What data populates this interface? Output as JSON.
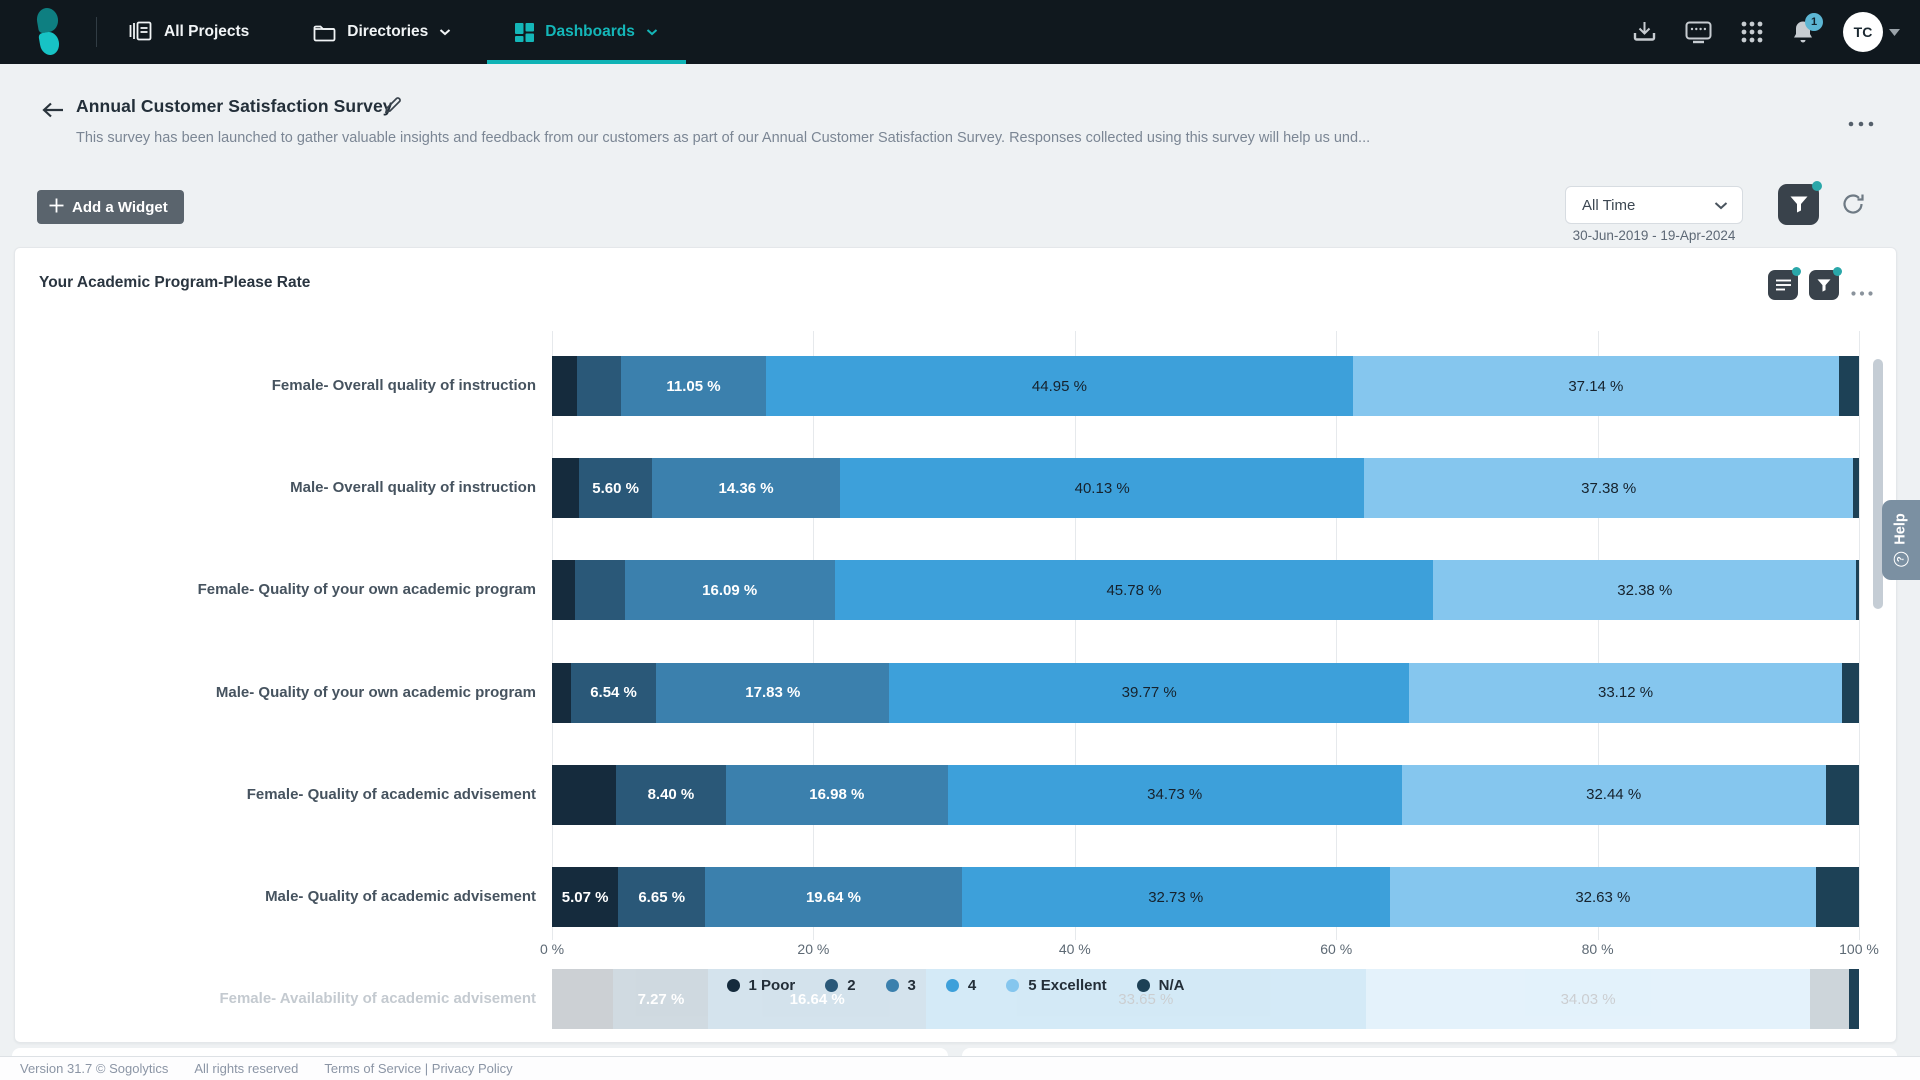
{
  "nav": {
    "items": [
      {
        "label": "All Projects"
      },
      {
        "label": "Directories"
      },
      {
        "label": "Dashboards"
      }
    ],
    "active_item": "Dashboards",
    "notification_count": "1",
    "avatar_initials": "TC"
  },
  "header": {
    "title": "Annual Customer Satisfaction Survey",
    "description": "This survey has been launched to gather valuable insights and feedback from our customers as part of our Annual Customer Satisfaction Survey. Responses collected using this survey will help us und..."
  },
  "toolbar": {
    "add_widget_label": "Add a Widget",
    "time_filter_value": "All Time",
    "date_range": "30-Jun-2019 - 19-Apr-2024"
  },
  "widget": {
    "title": "Your Academic Program-Please Rate"
  },
  "chart_data": {
    "type": "stacked_bar_horizontal",
    "title": "Your Academic Program-Please Rate",
    "x_axis": {
      "min": 0,
      "max": 100,
      "ticks": [
        "0 %",
        "20 %",
        "40 %",
        "60 %",
        "80 %",
        "100 %"
      ]
    },
    "grid": true,
    "legend_position": "bottom-center",
    "legend": [
      {
        "label": "1 Poor",
        "color": "#152b3d"
      },
      {
        "label": "2",
        "color": "#2a5878"
      },
      {
        "label": "3",
        "color": "#3b80ad"
      },
      {
        "label": "4",
        "color": "#3da0da"
      },
      {
        "label": "5 Excellent",
        "color": "#85c6ee"
      },
      {
        "label": "N/A",
        "color": "#1d4156"
      }
    ],
    "rows": [
      {
        "category": "Female- Overall quality of instruction",
        "faded": false,
        "segments": [
          {
            "series": "1 Poor",
            "value": 1.9,
            "label": ""
          },
          {
            "series": "2",
            "value": 3.4,
            "label": ""
          },
          {
            "series": "3",
            "value": 11.05,
            "label": "11.05 %"
          },
          {
            "series": "4",
            "value": 44.95,
            "label": "44.95 %"
          },
          {
            "series": "5 Excellent",
            "value": 37.14,
            "label": "37.14 %"
          },
          {
            "series": "N/A",
            "value": 1.56,
            "label": ""
          }
        ]
      },
      {
        "category": "Male- Overall quality of instruction",
        "faded": false,
        "segments": [
          {
            "series": "1 Poor",
            "value": 2.07,
            "label": ""
          },
          {
            "series": "2",
            "value": 5.6,
            "label": "5.60 %"
          },
          {
            "series": "3",
            "value": 14.36,
            "label": "14.36 %"
          },
          {
            "series": "4",
            "value": 40.13,
            "label": "40.13 %"
          },
          {
            "series": "5 Excellent",
            "value": 37.38,
            "label": "37.38 %"
          },
          {
            "series": "N/A",
            "value": 0.46,
            "label": ""
          }
        ]
      },
      {
        "category": "Female- Quality of your own academic program",
        "faded": false,
        "segments": [
          {
            "series": "1 Poor",
            "value": 1.76,
            "label": ""
          },
          {
            "series": "2",
            "value": 3.79,
            "label": ""
          },
          {
            "series": "3",
            "value": 16.09,
            "label": "16.09 %"
          },
          {
            "series": "4",
            "value": 45.78,
            "label": "45.78 %"
          },
          {
            "series": "5 Excellent",
            "value": 32.38,
            "label": "32.38 %"
          },
          {
            "series": "N/A",
            "value": 0.2,
            "label": ""
          }
        ]
      },
      {
        "category": "Male- Quality of your own academic program",
        "faded": false,
        "segments": [
          {
            "series": "1 Poor",
            "value": 1.44,
            "label": ""
          },
          {
            "series": "2",
            "value": 6.54,
            "label": "6.54 %"
          },
          {
            "series": "3",
            "value": 17.83,
            "label": "17.83 %"
          },
          {
            "series": "4",
            "value": 39.77,
            "label": "39.77 %"
          },
          {
            "series": "5 Excellent",
            "value": 33.12,
            "label": "33.12 %"
          },
          {
            "series": "N/A",
            "value": 1.3,
            "label": ""
          }
        ]
      },
      {
        "category": "Female- Quality of academic advisement",
        "faded": false,
        "segments": [
          {
            "series": "1 Poor",
            "value": 4.9,
            "label": ""
          },
          {
            "series": "2",
            "value": 8.4,
            "label": "8.40 %"
          },
          {
            "series": "3",
            "value": 16.98,
            "label": "16.98 %"
          },
          {
            "series": "4",
            "value": 34.73,
            "label": "34.73 %"
          },
          {
            "series": "5 Excellent",
            "value": 32.44,
            "label": "32.44 %"
          },
          {
            "series": "N/A",
            "value": 2.55,
            "label": ""
          }
        ]
      },
      {
        "category": "Male- Quality of academic advisement",
        "faded": false,
        "segments": [
          {
            "series": "1 Poor",
            "value": 5.07,
            "label": "5.07 %"
          },
          {
            "series": "2",
            "value": 6.65,
            "label": "6.65 %"
          },
          {
            "series": "3",
            "value": 19.64,
            "label": "19.64 %"
          },
          {
            "series": "4",
            "value": 32.73,
            "label": "32.73 %"
          },
          {
            "series": "5 Excellent",
            "value": 32.63,
            "label": "32.63 %"
          },
          {
            "series": "N/A",
            "value": 3.28,
            "label": ""
          }
        ]
      },
      {
        "category": "Female- Availability of academic advisement",
        "faded": true,
        "segments": [
          {
            "series": "1 Poor",
            "value": 4.7,
            "label": ""
          },
          {
            "series": "2",
            "value": 7.27,
            "label": "7.27 %"
          },
          {
            "series": "3",
            "value": 16.64,
            "label": "16.64 %"
          },
          {
            "series": "4",
            "value": 33.65,
            "label": "33.65 %"
          },
          {
            "series": "5 Excellent",
            "value": 34.03,
            "label": "34.03 %"
          },
          {
            "series": "N/A",
            "value": 2.91,
            "label": ""
          },
          {
            "series": "N/A",
            "value": 0.8,
            "label": "",
            "solid": true
          }
        ]
      }
    ]
  },
  "help_tab": {
    "label": "Help"
  },
  "footer": {
    "version": "Version 31.7 © Sogolytics",
    "rights": "All rights reserved",
    "links": "Terms of Service | Privacy Policy"
  }
}
